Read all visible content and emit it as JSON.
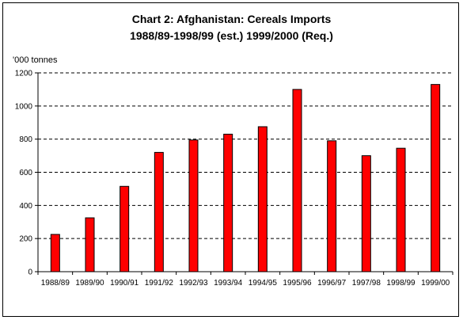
{
  "chart_data": {
    "type": "bar",
    "title": "Chart 2: Afghanistan: Cereals Imports",
    "subtitle": "1988/89-1998/99 (est.) 1999/2000 (Req.)",
    "ylabel": "'000 tonnes",
    "xlabel": "",
    "categories": [
      "1988/89",
      "1989/90",
      "1990/91",
      "1991/92",
      "1992/93",
      "1993/94",
      "1994/95",
      "1995/96",
      "1996/97",
      "1997/98",
      "1998/99",
      "1999/00"
    ],
    "values": [
      225,
      325,
      515,
      720,
      795,
      830,
      875,
      1100,
      790,
      700,
      745,
      1130
    ],
    "ylim": [
      0,
      1200
    ],
    "yticks": [
      0,
      200,
      400,
      600,
      800,
      1000,
      1200
    ],
    "grid": "dashed horizontal",
    "bar_color": "#ff0000",
    "legend": "none"
  }
}
